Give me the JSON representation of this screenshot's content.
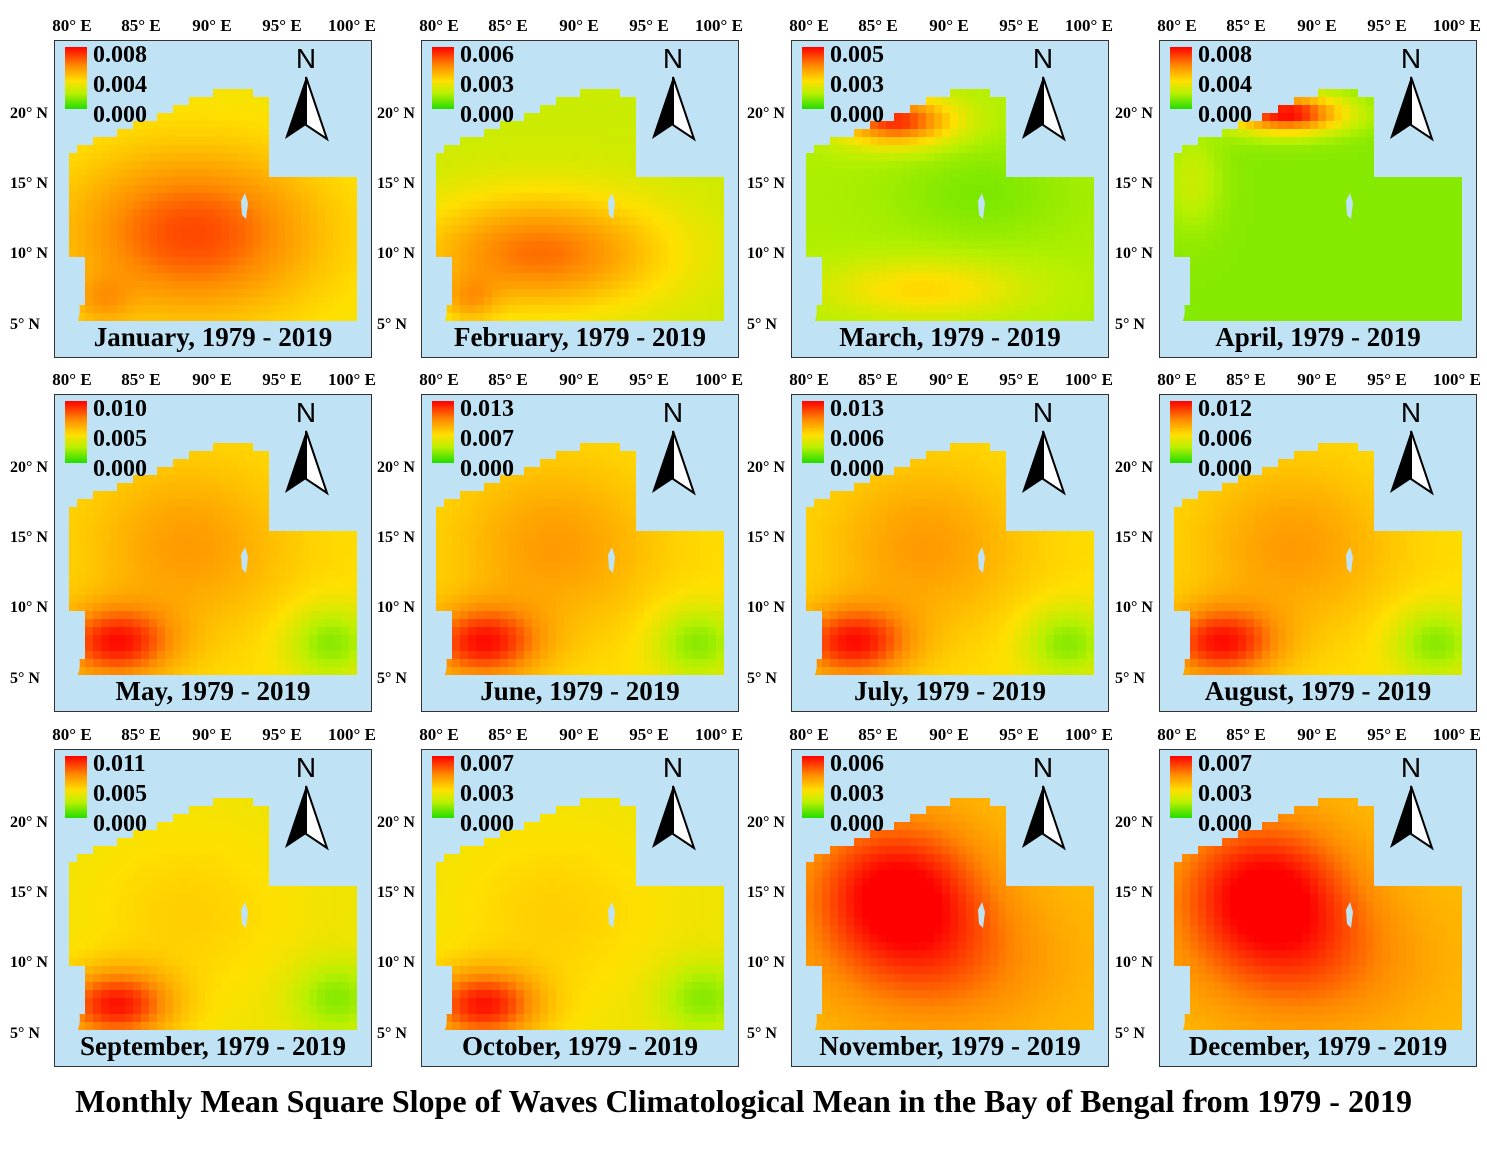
{
  "lon_labels": [
    "80° E",
    "85° E",
    "90° E",
    "95° E",
    "100° E"
  ],
  "lat_labels": [
    "20° N",
    "15° N",
    "10° N",
    "5° N"
  ],
  "north_label": "N",
  "main_title": "Monthly Mean Square Slope of Waves Climatological Mean in the Bay of Bengal from 1979 - 2019",
  "legend_colors": [
    "#ff0000",
    "#ff8a00",
    "#ffe000",
    "#b8f000",
    "#22dd00"
  ],
  "colors": {
    "ocean_background": "#bfe3f5",
    "land": "#ffffff"
  },
  "maps": [
    {
      "title": "January, 1979 - 2019",
      "legend": [
        "0.008",
        "0.004",
        "0.000"
      ],
      "pattern": "center-orange"
    },
    {
      "title": "February, 1979 - 2019",
      "legend": [
        "0.006",
        "0.003",
        "0.000"
      ],
      "pattern": "south-orange"
    },
    {
      "title": "March, 1979 - 2019",
      "legend": [
        "0.005",
        "0.003",
        "0.000"
      ],
      "pattern": "north-red"
    },
    {
      "title": "April, 1979 - 2019",
      "legend": [
        "0.008",
        "0.004",
        "0.000"
      ],
      "pattern": "north-red-green"
    },
    {
      "title": "May, 1979 - 2019",
      "legend": [
        "0.010",
        "0.005",
        "0.000"
      ],
      "pattern": "southwest-red"
    },
    {
      "title": "June, 1979 - 2019",
      "legend": [
        "0.013",
        "0.007",
        "0.000"
      ],
      "pattern": "southwest-red"
    },
    {
      "title": "July, 1979 - 2019",
      "legend": [
        "0.013",
        "0.006",
        "0.000"
      ],
      "pattern": "southwest-red"
    },
    {
      "title": "August, 1979 - 2019",
      "legend": [
        "0.012",
        "0.006",
        "0.000"
      ],
      "pattern": "southwest-red"
    },
    {
      "title": "September, 1979 - 2019",
      "legend": [
        "0.011",
        "0.005",
        "0.000"
      ],
      "pattern": "southwest-red-yellow"
    },
    {
      "title": "October, 1979 - 2019",
      "legend": [
        "0.007",
        "0.003",
        "0.000"
      ],
      "pattern": "southwest-red-yellow"
    },
    {
      "title": "November, 1979 - 2019",
      "legend": [
        "0.006",
        "0.003",
        "0.000"
      ],
      "pattern": "center-red"
    },
    {
      "title": "December, 1979 - 2019",
      "legend": [
        "0.007",
        "0.003",
        "0.000"
      ],
      "pattern": "center-red"
    }
  ]
}
